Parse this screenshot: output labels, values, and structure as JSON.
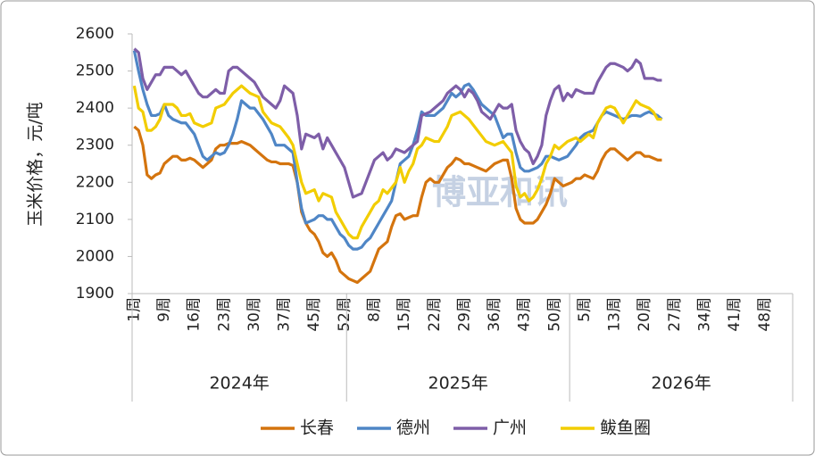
{
  "chart_data": {
    "type": "line",
    "y_label": "玉米价格，元/吨",
    "watermark": "博亚和讯",
    "x_groups": [
      "2024年",
      "2025年",
      "2026年"
    ],
    "ylim": [
      1900,
      2600
    ],
    "yticks": [
      1900,
      2000,
      2100,
      2200,
      2300,
      2400,
      2500,
      2600
    ],
    "categories": [
      "1周",
      null,
      null,
      null,
      null,
      null,
      null,
      "9周",
      null,
      null,
      null,
      null,
      null,
      null,
      "16周",
      null,
      null,
      null,
      null,
      null,
      null,
      "23周",
      null,
      null,
      null,
      null,
      null,
      null,
      "30周",
      null,
      null,
      null,
      null,
      null,
      null,
      "37周",
      null,
      null,
      null,
      null,
      null,
      null,
      "45周",
      null,
      null,
      null,
      null,
      null,
      null,
      "52周",
      null,
      null,
      null,
      null,
      null,
      null,
      "8周",
      null,
      null,
      null,
      null,
      null,
      null,
      "15周",
      null,
      null,
      null,
      null,
      null,
      null,
      "22周",
      null,
      null,
      null,
      null,
      null,
      null,
      "29周",
      null,
      null,
      null,
      null,
      null,
      null,
      "36周",
      null,
      null,
      null,
      null,
      null,
      null,
      "43周",
      null,
      null,
      null,
      null,
      null,
      null,
      "50周",
      null,
      null,
      null,
      null,
      null,
      null,
      "5周",
      null,
      null,
      null,
      null,
      null,
      null,
      "13周",
      null,
      null,
      null,
      null,
      null,
      null,
      "20周",
      null,
      null,
      null,
      null,
      null,
      null,
      "27周",
      null,
      null,
      null,
      null,
      null,
      null,
      "34周",
      null,
      null,
      null,
      null,
      null,
      null,
      "41周",
      null,
      null,
      null,
      null,
      null,
      null,
      "48周",
      null,
      null,
      null,
      null,
      null,
      null
    ],
    "series": [
      {
        "name": "长春",
        "color": "#d4740e",
        "values": [
          2350,
          2340,
          2300,
          2220,
          2210,
          2220,
          2225,
          2250,
          2260,
          2270,
          2270,
          2260,
          2260,
          2265,
          2260,
          2250,
          2240,
          2250,
          2260,
          2290,
          2300,
          2300,
          2305,
          2305,
          2305,
          2310,
          2305,
          2300,
          2290,
          2280,
          2270,
          2260,
          2255,
          2255,
          2250,
          2250,
          2250,
          2245,
          2200,
          2120,
          2090,
          2070,
          2060,
          2040,
          2010,
          2000,
          2010,
          1990,
          1960,
          1950,
          1940,
          1935,
          1930,
          1940,
          1950,
          1960,
          1990,
          2020,
          2030,
          2040,
          2080,
          2110,
          2115,
          2100,
          2105,
          2110,
          2110,
          2160,
          2200,
          2210,
          2200,
          2200,
          2220,
          2240,
          2250,
          2265,
          2260,
          2250,
          2250,
          2245,
          2240,
          2235,
          2230,
          2240,
          2250,
          2255,
          2260,
          2260,
          2210,
          2130,
          2100,
          2090,
          2090,
          2090,
          2100,
          2120,
          2140,
          2170,
          2210,
          2200,
          2190,
          2195,
          2200,
          2210,
          2210,
          2220,
          2215,
          2210,
          2230,
          2260,
          2280,
          2290,
          2290,
          2280,
          2270,
          2260,
          2270,
          2280,
          2280,
          2270,
          2270,
          2265,
          2260,
          2260,
          null,
          null,
          null,
          null,
          null,
          null,
          null,
          null,
          null,
          null,
          null,
          null,
          null,
          null,
          null,
          null,
          null,
          null,
          null,
          null,
          null,
          null,
          null,
          null,
          null,
          null,
          null,
          null,
          null,
          null
        ]
      },
      {
        "name": "德州",
        "color": "#4f86c6",
        "values": [
          2555,
          2500,
          2450,
          2410,
          2380,
          2380,
          2385,
          2410,
          2380,
          2370,
          2365,
          2360,
          2360,
          2345,
          2330,
          2300,
          2270,
          2260,
          2270,
          2280,
          2275,
          2280,
          2300,
          2330,
          2370,
          2420,
          2410,
          2400,
          2400,
          2385,
          2370,
          2350,
          2330,
          2300,
          2300,
          2300,
          2290,
          2280,
          2200,
          2130,
          2090,
          2095,
          2100,
          2110,
          2110,
          2100,
          2100,
          2080,
          2060,
          2050,
          2030,
          2020,
          2020,
          2025,
          2040,
          2050,
          2070,
          2090,
          2110,
          2130,
          2150,
          2200,
          2250,
          2260,
          2270,
          2300,
          2340,
          2390,
          2380,
          2380,
          2380,
          2390,
          2400,
          2420,
          2440,
          2430,
          2440,
          2460,
          2465,
          2450,
          2430,
          2410,
          2400,
          2390,
          2380,
          2350,
          2320,
          2330,
          2330,
          2280,
          2240,
          2230,
          2230,
          2235,
          2240,
          2250,
          2270,
          2270,
          2265,
          2260,
          2265,
          2270,
          2285,
          2300,
          2320,
          2330,
          2335,
          2340,
          2360,
          2380,
          2390,
          2385,
          2380,
          2375,
          2370,
          2375,
          2380,
          2380,
          2378,
          2385,
          2390,
          2385,
          2380,
          2370,
          null,
          null,
          null,
          null,
          null,
          null,
          null,
          null,
          null,
          null,
          null,
          null,
          null,
          null,
          null,
          null,
          null,
          null,
          null,
          null,
          null,
          null,
          null,
          null,
          null,
          null,
          null,
          null,
          null,
          null
        ]
      },
      {
        "name": "广州",
        "color": "#7e5ea8",
        "values": [
          2560,
          2550,
          2480,
          2450,
          2470,
          2490,
          2490,
          2510,
          2510,
          2510,
          2500,
          2490,
          2500,
          2480,
          2460,
          2440,
          2430,
          2430,
          2440,
          2450,
          2440,
          2440,
          2500,
          2510,
          2510,
          2500,
          2490,
          2480,
          2470,
          2450,
          2430,
          2420,
          2410,
          2400,
          2420,
          2460,
          2450,
          2440,
          2380,
          2290,
          2330,
          2325,
          2320,
          2330,
          2290,
          2320,
          2300,
          2280,
          2260,
          2240,
          2200,
          2160,
          2165,
          2170,
          2200,
          2230,
          2260,
          2270,
          2280,
          2260,
          2270,
          2290,
          2285,
          2280,
          2290,
          2300,
          2310,
          2380,
          2385,
          2390,
          2400,
          2410,
          2420,
          2440,
          2450,
          2460,
          2450,
          2430,
          2450,
          2440,
          2420,
          2390,
          2380,
          2370,
          2390,
          2410,
          2400,
          2400,
          2410,
          2340,
          2310,
          2290,
          2280,
          2250,
          2270,
          2300,
          2380,
          2420,
          2450,
          2460,
          2420,
          2440,
          2430,
          2450,
          2445,
          2440,
          2440,
          2440,
          2470,
          2490,
          2510,
          2520,
          2520,
          2515,
          2510,
          2500,
          2510,
          2530,
          2520,
          2480,
          2480,
          2480,
          2475,
          2475,
          null,
          null,
          null,
          null,
          null,
          null,
          null,
          null,
          null,
          null,
          null,
          null,
          null,
          null,
          null,
          null,
          null,
          null,
          null,
          null,
          null,
          null,
          null,
          null,
          null,
          null,
          null,
          null,
          null,
          null
        ]
      },
      {
        "name": "鲅鱼圈",
        "color": "#f2cd00",
        "values": [
          2460,
          2400,
          2390,
          2340,
          2340,
          2350,
          2370,
          2410,
          2410,
          2410,
          2400,
          2380,
          2380,
          2385,
          2360,
          2355,
          2350,
          2355,
          2360,
          2400,
          2405,
          2410,
          2425,
          2440,
          2450,
          2460,
          2450,
          2440,
          2435,
          2430,
          2390,
          2375,
          2360,
          2355,
          2350,
          2335,
          2320,
          2300,
          2250,
          2200,
          2170,
          2175,
          2180,
          2150,
          2170,
          2165,
          2160,
          2120,
          2100,
          2080,
          2060,
          2050,
          2050,
          2080,
          2100,
          2120,
          2140,
          2150,
          2180,
          2170,
          2185,
          2200,
          2240,
          2200,
          2230,
          2250,
          2290,
          2300,
          2320,
          2315,
          2310,
          2310,
          2330,
          2350,
          2380,
          2385,
          2390,
          2380,
          2370,
          2355,
          2340,
          2325,
          2310,
          2305,
          2300,
          2305,
          2310,
          2295,
          2280,
          2190,
          2160,
          2170,
          2150,
          2160,
          2180,
          2210,
          2250,
          2270,
          2300,
          2290,
          2300,
          2310,
          2315,
          2320,
          2310,
          2320,
          2330,
          2320,
          2360,
          2380,
          2400,
          2405,
          2400,
          2380,
          2360,
          2380,
          2400,
          2420,
          2410,
          2405,
          2400,
          2390,
          2370,
          2370,
          null,
          null,
          null,
          null,
          null,
          null,
          null,
          null,
          null,
          null,
          null,
          null,
          null,
          null,
          null,
          null,
          null,
          null,
          null,
          null,
          null,
          null,
          null,
          null,
          null,
          null,
          null,
          null,
          null,
          null
        ]
      }
    ]
  }
}
